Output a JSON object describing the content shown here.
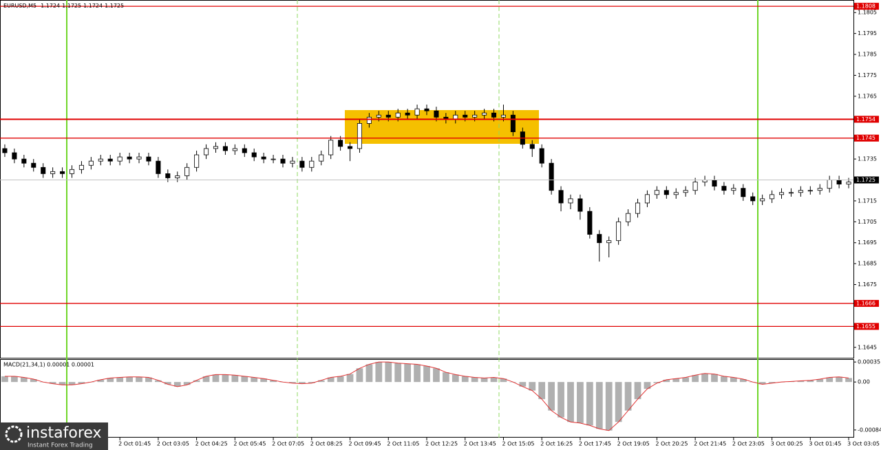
{
  "chart_data": {
    "type": "candlestick",
    "symbol": "EURUSD,M5",
    "header_values": [
      1.1724,
      1.1725,
      1.1724,
      1.1725
    ],
    "xlim": [
      -0.5,
      88.5
    ],
    "ylim": [
      1.164,
      1.1811
    ],
    "yticks": [
      1.1805,
      1.1795,
      1.1785,
      1.1775,
      1.1765,
      1.1735,
      1.1715,
      1.1705,
      1.1695,
      1.1685,
      1.1675,
      1.1645
    ],
    "levels": [
      1.1808,
      1.1754,
      1.1745,
      1.1666,
      1.1655
    ],
    "level_color": "#e00000",
    "last_price": 1.1725,
    "xticks": [
      {
        "value": 12,
        "label": "2 Oct 01:45"
      },
      {
        "value": 16,
        "label": "2 Oct 03:05"
      },
      {
        "value": 20,
        "label": "2 Oct 04:25"
      },
      {
        "value": 24,
        "label": "2 Oct 05:45"
      },
      {
        "value": 28,
        "label": "2 Oct 07:05"
      },
      {
        "value": 32,
        "label": "2 Oct 08:25"
      },
      {
        "value": 36,
        "label": "2 Oct 09:45"
      },
      {
        "value": 40,
        "label": "2 Oct 11:05"
      },
      {
        "value": 44,
        "label": "2 Oct 12:25"
      },
      {
        "value": 48,
        "label": "2 Oct 13:45"
      },
      {
        "value": 52,
        "label": "2 Oct 15:05"
      },
      {
        "value": 56,
        "label": "2 Oct 16:25"
      },
      {
        "value": 60,
        "label": "2 Oct 17:45"
      },
      {
        "value": 64,
        "label": "2 Oct 19:05"
      },
      {
        "value": 68,
        "label": "2 Oct 20:25"
      },
      {
        "value": 72,
        "label": "2 Oct 21:45"
      },
      {
        "value": 76,
        "label": "2 Oct 23:05"
      },
      {
        "value": 80,
        "label": "3 Oct 00:25"
      },
      {
        "value": 84,
        "label": "3 Oct 01:45"
      },
      {
        "value": 88,
        "label": "3 Oct 03:05"
      }
    ],
    "open": [
      1.174,
      1.1738,
      1.1735,
      1.1733,
      1.1731,
      1.1728,
      1.1729,
      1.1728,
      1.173,
      1.1732,
      1.1734,
      1.1735,
      1.1734,
      1.1736,
      1.1735,
      1.1736,
      1.1734,
      1.1728,
      1.1726,
      1.1727,
      1.1731,
      1.1737,
      1.174,
      1.1741,
      1.1739,
      1.174,
      1.1738,
      1.1736,
      1.1735,
      1.1735,
      1.1733,
      1.1734,
      1.1731,
      1.1734,
      1.1737,
      1.1744,
      1.1741,
      1.174,
      1.1752,
      1.1755,
      1.1756,
      1.1755,
      1.1757,
      1.1756,
      1.1759,
      1.1758,
      1.1755,
      1.1754,
      1.1756,
      1.1755,
      1.1756,
      1.1757,
      1.1755,
      1.1756,
      1.1748,
      1.1742,
      1.174,
      1.1733,
      1.172,
      1.1714,
      1.1716,
      1.171,
      1.1699,
      1.1695,
      1.1696,
      1.1705,
      1.1709,
      1.1714,
      1.1718,
      1.172,
      1.1718,
      1.1719,
      1.172,
      1.1724,
      1.1725,
      1.1722,
      1.172,
      1.1721,
      1.1717,
      1.1715,
      1.1716,
      1.1718,
      1.1719,
      1.1719,
      1.172,
      1.172,
      1.1721,
      1.1725,
      1.1723
    ],
    "high": [
      1.1742,
      1.174,
      1.1737,
      1.1735,
      1.1733,
      1.1731,
      1.1731,
      1.1732,
      1.1734,
      1.1736,
      1.1737,
      1.1737,
      1.1738,
      1.1738,
      1.1738,
      1.1738,
      1.1736,
      1.173,
      1.1729,
      1.1733,
      1.1739,
      1.1742,
      1.1743,
      1.1743,
      1.1742,
      1.1742,
      1.174,
      1.1738,
      1.1737,
      1.1737,
      1.1736,
      1.1736,
      1.1736,
      1.1739,
      1.1746,
      1.1746,
      1.1743,
      1.1754,
      1.1757,
      1.1758,
      1.1758,
      1.1759,
      1.1759,
      1.1761,
      1.1761,
      1.176,
      1.1757,
      1.1758,
      1.1758,
      1.1758,
      1.1759,
      1.1759,
      1.1761,
      1.1758,
      1.175,
      1.1744,
      1.1742,
      1.1735,
      1.1722,
      1.1718,
      1.1718,
      1.1712,
      1.1701,
      1.1698,
      1.1707,
      1.1711,
      1.1716,
      1.172,
      1.1722,
      1.1722,
      1.1721,
      1.1722,
      1.1726,
      1.1727,
      1.1727,
      1.1724,
      1.1723,
      1.1723,
      1.1719,
      1.1718,
      1.172,
      1.1721,
      1.1721,
      1.1722,
      1.1722,
      1.1723,
      1.1727,
      1.1727,
      1.1726
    ],
    "low": [
      1.1736,
      1.1733,
      1.1731,
      1.1729,
      1.1726,
      1.1726,
      1.1726,
      1.1726,
      1.1728,
      1.173,
      1.1732,
      1.1732,
      1.1732,
      1.1733,
      1.1733,
      1.1732,
      1.1726,
      1.1724,
      1.1724,
      1.1725,
      1.1729,
      1.1735,
      1.1738,
      1.1737,
      1.1737,
      1.1736,
      1.1734,
      1.1733,
      1.1733,
      1.1731,
      1.1731,
      1.1729,
      1.1729,
      1.1732,
      1.1735,
      1.1739,
      1.1734,
      1.1738,
      1.175,
      1.1753,
      1.1753,
      1.1753,
      1.1754,
      1.1754,
      1.1756,
      1.1753,
      1.1752,
      1.1752,
      1.1753,
      1.1753,
      1.1754,
      1.1753,
      1.1753,
      1.1746,
      1.174,
      1.1736,
      1.1731,
      1.1718,
      1.171,
      1.1711,
      1.1706,
      1.1697,
      1.1686,
      1.1688,
      1.1694,
      1.1703,
      1.1707,
      1.1712,
      1.1716,
      1.1716,
      1.1716,
      1.1717,
      1.1718,
      1.1722,
      1.172,
      1.1718,
      1.1718,
      1.1715,
      1.1713,
      1.1713,
      1.1714,
      1.1716,
      1.1717,
      1.1717,
      1.1718,
      1.1718,
      1.1719,
      1.1721,
      1.1721
    ],
    "close": [
      1.1738,
      1.1735,
      1.1733,
      1.1731,
      1.1728,
      1.1729,
      1.1728,
      1.173,
      1.1732,
      1.1734,
      1.1735,
      1.1734,
      1.1736,
      1.1735,
      1.1736,
      1.1734,
      1.1728,
      1.1726,
      1.1727,
      1.1731,
      1.1737,
      1.174,
      1.1741,
      1.1739,
      1.174,
      1.1738,
      1.1736,
      1.1735,
      1.1735,
      1.1733,
      1.1734,
      1.1731,
      1.1734,
      1.1737,
      1.1744,
      1.1741,
      1.174,
      1.1752,
      1.1755,
      1.1756,
      1.1755,
      1.1757,
      1.1756,
      1.1759,
      1.1758,
      1.1755,
      1.1754,
      1.1756,
      1.1755,
      1.1756,
      1.1757,
      1.1755,
      1.1756,
      1.1748,
      1.1742,
      1.174,
      1.1733,
      1.172,
      1.1714,
      1.1716,
      1.171,
      1.1699,
      1.1695,
      1.1696,
      1.1705,
      1.1709,
      1.1714,
      1.1718,
      1.172,
      1.1718,
      1.1719,
      1.172,
      1.1724,
      1.1725,
      1.1722,
      1.172,
      1.1721,
      1.1717,
      1.1715,
      1.1716,
      1.1718,
      1.1719,
      1.1719,
      1.172,
      1.172,
      1.1721,
      1.1725,
      1.1723,
      1.1724
    ],
    "macd": {
      "label": "MACD(21,34,1) 0.00001 0.00001",
      "ylim": [
        -0.00095,
        0.0004
      ],
      "yticks": [
        0.00035,
        {
          "value": 0,
          "label": "0.00"
        },
        -0.00084
      ],
      "hist_color": "#b0b0b0",
      "signal_color": "#e03030",
      "values": [
        0.0001,
        0.0001,
        8e-05,
        5e-05,
        0,
        -3e-05,
        -5e-05,
        -5e-05,
        -3e-05,
        0,
        4e-05,
        7e-05,
        8e-05,
        9e-05,
        9e-05,
        8e-05,
        3e-05,
        -4e-05,
        -8e-05,
        -5e-05,
        3e-05,
        0.0001,
        0.00013,
        0.00013,
        0.00012,
        0.0001,
        8e-05,
        6e-05,
        3e-05,
        0,
        -2e-05,
        -3e-05,
        -2e-05,
        3e-05,
        8e-05,
        0.0001,
        0.00014,
        0.00024,
        0.00031,
        0.00035,
        0.00035,
        0.00033,
        0.00032,
        0.00031,
        0.00028,
        0.00024,
        0.00017,
        0.00013,
        0.0001,
        8e-05,
        7e-05,
        8e-05,
        6e-05,
        0,
        -8e-05,
        -0.00015,
        -0.0003,
        -0.0005,
        -0.00062,
        -0.0007,
        -0.00072,
        -0.00076,
        -0.00082,
        -0.00085,
        -0.0007,
        -0.0005,
        -0.0003,
        -0.00012,
        -2e-05,
        4e-05,
        6e-05,
        8e-05,
        0.00012,
        0.00015,
        0.00014,
        0.0001,
        8e-05,
        5e-05,
        0,
        -4e-05,
        -2e-05,
        0,
        1e-05,
        2e-05,
        3e-05,
        5e-05,
        8e-05,
        9e-05,
        7e-05
      ]
    }
  },
  "logo": {
    "name": "instaforex",
    "tagline": "Instant Forex Trading"
  }
}
